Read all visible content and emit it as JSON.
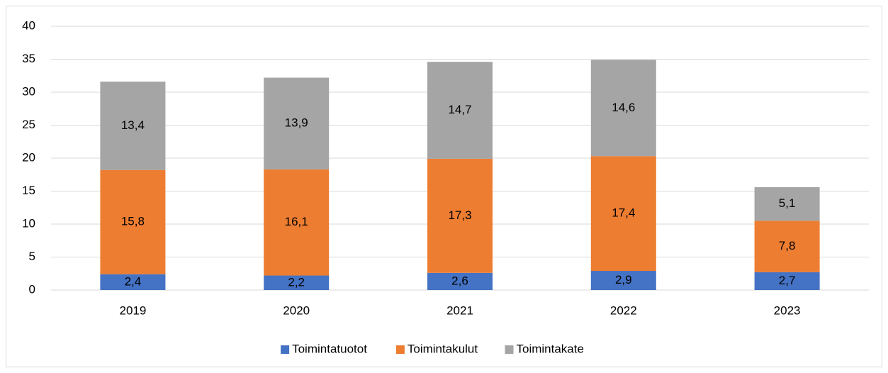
{
  "chart_data": {
    "type": "stacked_bar",
    "categories": [
      "2019",
      "2020",
      "2021",
      "2022",
      "2023"
    ],
    "series": [
      {
        "name": "Toimintatuotot",
        "color": "#4472c4",
        "values": [
          2.4,
          2.2,
          2.6,
          2.9,
          2.7
        ],
        "value_labels": [
          "2,4",
          "2,2",
          "2,6",
          "2,9",
          "2,7"
        ]
      },
      {
        "name": "Toimintakulut",
        "color": "#ed7d31",
        "values": [
          15.8,
          16.1,
          17.3,
          17.4,
          7.8
        ],
        "value_labels": [
          "15,8",
          "16,1",
          "17,3",
          "17,4",
          "7,8"
        ]
      },
      {
        "name": "Toimintakate",
        "color": "#a5a5a5",
        "values": [
          13.4,
          13.9,
          14.7,
          14.6,
          5.1
        ],
        "value_labels": [
          "13,4",
          "13,9",
          "14,7",
          "14,6",
          "5,1"
        ]
      }
    ],
    "ylim": [
      0,
      40
    ],
    "yticks": [
      0,
      5,
      10,
      15,
      20,
      25,
      30,
      35,
      40
    ],
    "grid": true,
    "legend": "bottom"
  }
}
